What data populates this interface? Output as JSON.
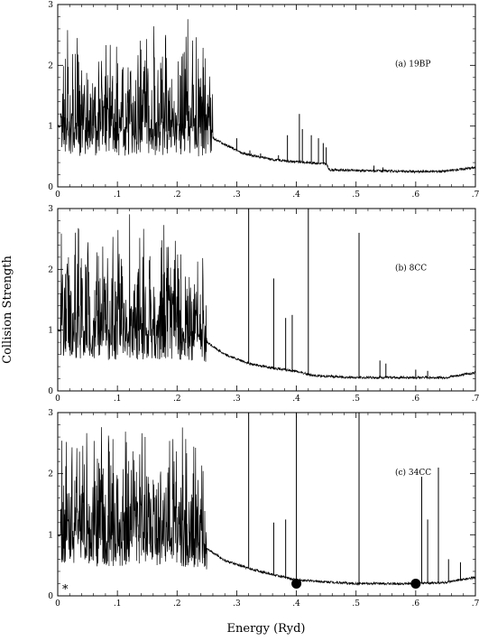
{
  "chart_data": {
    "type": "line",
    "xlabel": "Energy (Ryd)",
    "ylabel": "Collision Strength",
    "xlim": [
      0,
      0.7
    ],
    "ylim": [
      0,
      3
    ],
    "x_tick_labels": [
      "0",
      ".1",
      ".2",
      ".3",
      ".4",
      ".5",
      ".6",
      ".7"
    ],
    "x_ticks": [
      0,
      0.1,
      0.2,
      0.3,
      0.4,
      0.5,
      0.6,
      0.7
    ],
    "y_tick_labels": [
      "0",
      "1",
      "2",
      "3"
    ],
    "y_ticks": [
      0,
      1,
      2,
      3
    ],
    "grid": false,
    "line_color": "#000000",
    "panels": [
      {
        "label": "(a) 19BP",
        "background": [
          [
            0.0,
            1.0
          ],
          [
            0.05,
            0.9
          ],
          [
            0.1,
            0.88
          ],
          [
            0.15,
            0.92
          ],
          [
            0.2,
            0.95
          ],
          [
            0.25,
            0.85
          ],
          [
            0.28,
            0.7
          ],
          [
            0.31,
            0.55
          ],
          [
            0.36,
            0.45
          ],
          [
            0.39,
            0.42
          ],
          [
            0.45,
            0.38
          ],
          [
            0.455,
            0.28
          ],
          [
            0.5,
            0.27
          ],
          [
            0.55,
            0.26
          ],
          [
            0.6,
            0.25
          ],
          [
            0.65,
            0.26
          ],
          [
            0.7,
            0.32
          ]
        ],
        "spikes": [
          [
            0.3,
            0.8
          ],
          [
            0.322,
            0.6
          ],
          [
            0.34,
            0.55
          ],
          [
            0.37,
            0.52
          ],
          [
            0.385,
            0.85
          ],
          [
            0.405,
            1.2
          ],
          [
            0.41,
            0.95
          ],
          [
            0.425,
            0.85
          ],
          [
            0.437,
            0.8
          ],
          [
            0.445,
            0.72
          ],
          [
            0.45,
            0.65
          ],
          [
            0.53,
            0.35
          ],
          [
            0.545,
            0.32
          ],
          [
            0.59,
            0.28
          ]
        ],
        "dense_regions": [
          [
            0.005,
            0.26,
            2.8
          ]
        ],
        "markers": []
      },
      {
        "label": "(b) 8CC",
        "background": [
          [
            0.0,
            1.0
          ],
          [
            0.05,
            0.95
          ],
          [
            0.1,
            0.9
          ],
          [
            0.15,
            0.92
          ],
          [
            0.2,
            0.95
          ],
          [
            0.25,
            0.8
          ],
          [
            0.28,
            0.6
          ],
          [
            0.32,
            0.45
          ],
          [
            0.36,
            0.38
          ],
          [
            0.4,
            0.32
          ],
          [
            0.43,
            0.25
          ],
          [
            0.5,
            0.22
          ],
          [
            0.55,
            0.22
          ],
          [
            0.6,
            0.22
          ],
          [
            0.65,
            0.22
          ],
          [
            0.7,
            0.3
          ]
        ],
        "spikes": [
          [
            0.32,
            3.0
          ],
          [
            0.362,
            1.85
          ],
          [
            0.382,
            1.2
          ],
          [
            0.393,
            1.25
          ],
          [
            0.42,
            3.0
          ],
          [
            0.505,
            2.6
          ],
          [
            0.54,
            0.5
          ],
          [
            0.55,
            0.45
          ],
          [
            0.6,
            0.35
          ],
          [
            0.62,
            0.33
          ]
        ],
        "dense_regions": [
          [
            0.005,
            0.25,
            3.0
          ]
        ],
        "markers": []
      },
      {
        "label": "(c) 34CC",
        "background": [
          [
            0.0,
            1.0
          ],
          [
            0.05,
            0.88
          ],
          [
            0.1,
            0.86
          ],
          [
            0.15,
            0.88
          ],
          [
            0.2,
            0.9
          ],
          [
            0.25,
            0.78
          ],
          [
            0.28,
            0.58
          ],
          [
            0.32,
            0.45
          ],
          [
            0.36,
            0.35
          ],
          [
            0.4,
            0.26
          ],
          [
            0.5,
            0.2
          ],
          [
            0.55,
            0.2
          ],
          [
            0.6,
            0.2
          ],
          [
            0.65,
            0.22
          ],
          [
            0.7,
            0.3
          ]
        ],
        "spikes": [
          [
            0.32,
            3.0
          ],
          [
            0.362,
            1.2
          ],
          [
            0.382,
            1.25
          ],
          [
            0.4,
            3.0
          ],
          [
            0.505,
            3.0
          ],
          [
            0.61,
            1.95
          ],
          [
            0.62,
            1.25
          ],
          [
            0.638,
            2.1
          ],
          [
            0.655,
            0.6
          ],
          [
            0.675,
            0.55
          ]
        ],
        "dense_regions": [
          [
            0.005,
            0.25,
            3.0
          ]
        ],
        "markers": [
          [
            0.4,
            0.2
          ],
          [
            0.6,
            0.2
          ]
        ]
      }
    ]
  },
  "asterisk": "*"
}
